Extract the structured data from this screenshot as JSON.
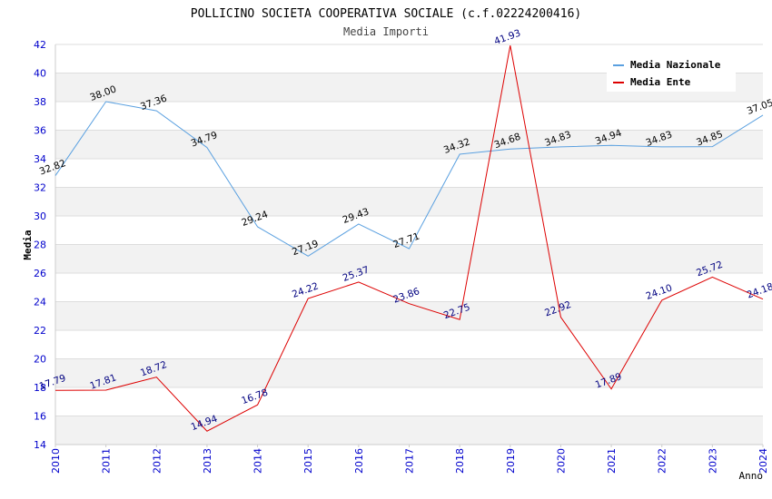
{
  "chart_data": {
    "type": "line",
    "title": "POLLICINO SOCIETA COOPERATIVA SOCIALE (c.f.02224200416)",
    "subtitle": "Media Importi",
    "xlabel": "Anno",
    "ylabel": "Media",
    "ylim": [
      14,
      42
    ],
    "yticks": [
      14,
      16,
      18,
      20,
      22,
      24,
      26,
      28,
      30,
      32,
      34,
      36,
      38,
      40,
      42
    ],
    "x": [
      "2010",
      "2011",
      "2012",
      "2013",
      "2014",
      "2015",
      "2016",
      "2017",
      "2018",
      "2019",
      "2020",
      "2021",
      "2022",
      "2023",
      "2024"
    ],
    "legend_position": "top-right",
    "grid": true,
    "series": [
      {
        "name": "Media Nazionale",
        "color": "#5aa0e0",
        "label_color": "#000000",
        "values": [
          32.82,
          38.0,
          37.36,
          34.79,
          29.24,
          27.19,
          29.43,
          27.71,
          34.32,
          34.68,
          34.83,
          34.94,
          34.83,
          34.85,
          37.05
        ],
        "labels": [
          "32.82",
          "38.00",
          "37.36",
          "34.79",
          "29.24",
          "27.19",
          "29.43",
          "27.71",
          "34.32",
          "34.68",
          "34.83",
          "34.94",
          "34.83",
          "34.85",
          "37.05"
        ]
      },
      {
        "name": "Media Ente",
        "color": "#dd0000",
        "label_color": "#000080",
        "values": [
          17.79,
          17.81,
          18.72,
          14.94,
          16.78,
          24.22,
          25.37,
          23.86,
          22.75,
          41.93,
          22.92,
          17.89,
          24.1,
          25.72,
          24.18
        ],
        "labels": [
          "17.79",
          "17.81",
          "18.72",
          "14.94",
          "16.78",
          "24.22",
          "25.37",
          "23.86",
          "22.75",
          "41.93",
          "22.92",
          "17.89",
          "24.10",
          "25.72",
          "24.18"
        ]
      }
    ]
  }
}
